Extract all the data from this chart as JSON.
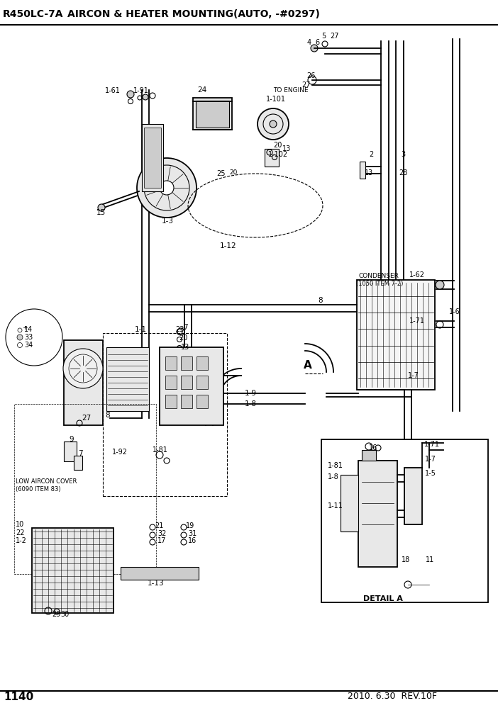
{
  "title": "AIRCON & HEATER MOUNTING(AUTO, -#0297)",
  "model": "R450LC-7A",
  "page": "1140",
  "date": "2010. 6.30  REV.10F",
  "bg_color": "#ffffff",
  "lc": "#000000",
  "gray1": "#cccccc",
  "gray2": "#e8e8e8",
  "gray3": "#aaaaaa"
}
